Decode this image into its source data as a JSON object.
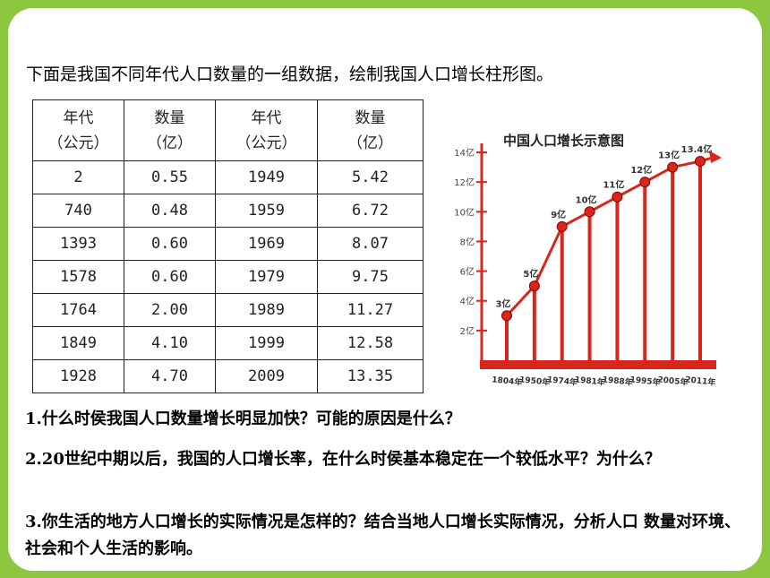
{
  "intro": "下面是我国不同年代人口数量的一组数据，绘制我国人口增长柱形图。",
  "table": {
    "headers": [
      [
        "年代",
        "（公元）"
      ],
      [
        "数量",
        "（亿）"
      ],
      [
        "年代",
        "（公元）"
      ],
      [
        "数量",
        "（亿）"
      ]
    ],
    "rows": [
      [
        "2",
        "0.55",
        "1949",
        "5.42"
      ],
      [
        "740",
        "0.48",
        "1959",
        "6.72"
      ],
      [
        "1393",
        "0.60",
        "1969",
        "8.07"
      ],
      [
        "1578",
        "0.60",
        "1979",
        "9.75"
      ],
      [
        "1764",
        "2.00",
        "1989",
        "11.27"
      ],
      [
        "1849",
        "4.10",
        "1999",
        "12.58"
      ],
      [
        "1928",
        "4.70",
        "2009",
        "13.35"
      ]
    ]
  },
  "chart_data": {
    "type": "line",
    "title": "中国人口增长示意图",
    "categories": [
      "1804年",
      "1950年",
      "1974年",
      "1981年",
      "1988年",
      "1995年",
      "2005年",
      "2011年"
    ],
    "point_labels": [
      "3亿",
      "5亿",
      "9亿",
      "10亿",
      "11亿",
      "12亿",
      "13亿",
      "13.4亿"
    ],
    "values": [
      3,
      5,
      9,
      10,
      11,
      12,
      13,
      13.4
    ],
    "y_ticks": [
      "2亿",
      "4亿",
      "6亿",
      "8亿",
      "10亿",
      "12亿",
      "14亿"
    ],
    "y_tick_values": [
      2,
      4,
      6,
      8,
      10,
      12,
      14
    ],
    "ylim": [
      0,
      14
    ],
    "color": "#d9261c"
  },
  "questions": {
    "q1": "1.什么时侯我国人口数量增长明显加快？可能的原因是什么？",
    "q2": "2.20世纪中期以后，我国的人口增长率，在什么时侯基本稳定在一个较低水平？为什么？",
    "q3": "3.你生活的地方人口增长的实际情况是怎样的？结合当地人口增长实际情况，分析人口 数量对环境、社会和个人生活的影响。"
  }
}
